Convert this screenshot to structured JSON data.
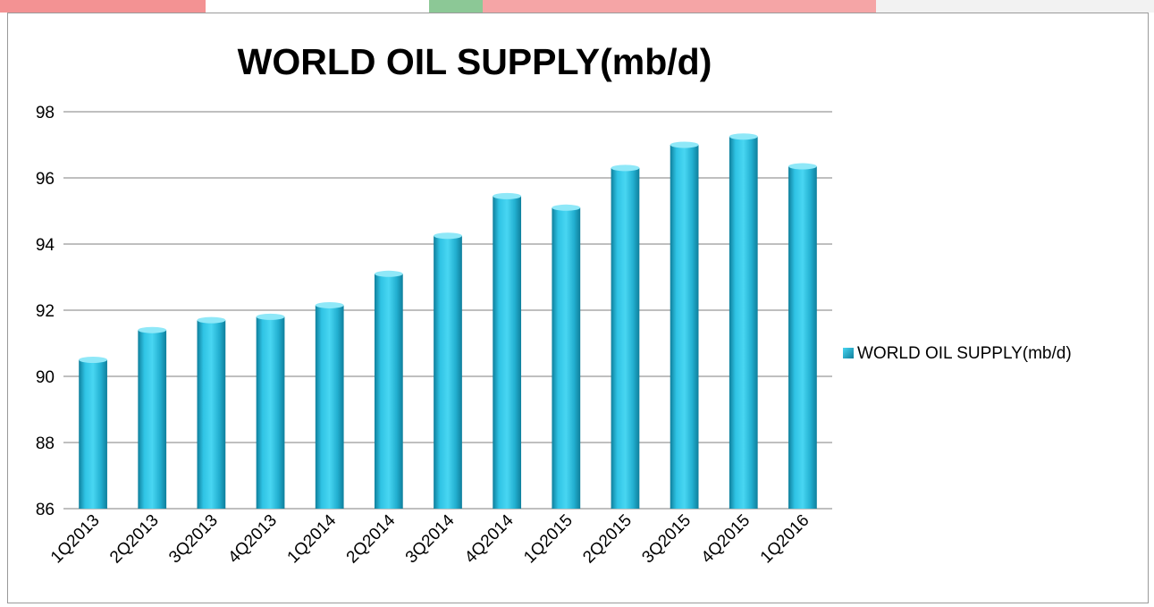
{
  "colors": {
    "bar_light": "#3ed0ee",
    "bar_mid": "#22afd0",
    "bar_dark": "#0f7f9c",
    "bar_top": "#8fe8f8",
    "grid": "#7f7f7f",
    "frame": "#9a9a9a",
    "background_strip": [
      "#e9383a",
      "#ffffff",
      "#2e9a3f",
      "#e9383a",
      "#ffffff"
    ]
  },
  "chart_data": {
    "type": "bar",
    "title": "WORLD OIL SUPPLY(mb/d)",
    "xlabel": "",
    "ylabel": "",
    "categories": [
      "1Q2013",
      "2Q2013",
      "3Q2013",
      "4Q2013",
      "1Q2014",
      "2Q2014",
      "3Q2014",
      "4Q2014",
      "1Q2015",
      "2Q2015",
      "3Q2015",
      "4Q2015",
      "1Q2016"
    ],
    "series": [
      {
        "name": "WORLD OIL SUPPLY(mb/d)",
        "values": [
          90.5,
          91.4,
          91.7,
          91.8,
          92.15,
          93.1,
          94.25,
          95.45,
          95.1,
          96.3,
          97.0,
          97.25,
          96.35
        ]
      }
    ],
    "ylim": [
      86,
      98
    ],
    "yticks": [
      86,
      88,
      90,
      92,
      94,
      96,
      98
    ],
    "grid": true,
    "legend_position": "right"
  }
}
